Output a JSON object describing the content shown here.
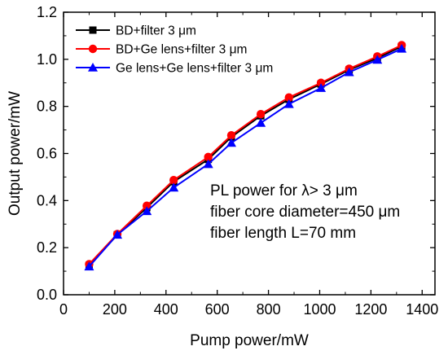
{
  "chart_data": {
    "type": "line",
    "title": "",
    "xlabel": "Pump power/mW",
    "ylabel": "Output power/mW",
    "xlim": [
      0,
      1450
    ],
    "ylim": [
      0,
      1.2
    ],
    "xticks": [
      0,
      200,
      400,
      600,
      800,
      1000,
      1200,
      1400
    ],
    "yticks": [
      0.0,
      0.2,
      0.4,
      0.6,
      0.8,
      1.0,
      1.2
    ],
    "xtick_labels": [
      "0",
      "200",
      "400",
      "600",
      "800",
      "1000",
      "1200",
      "1400"
    ],
    "ytick_labels": [
      "0.0",
      "0.2",
      "0.4",
      "0.6",
      "0.8",
      "1.0",
      "1.2"
    ],
    "grid": false,
    "legend_position": "top-left",
    "x": [
      100,
      210,
      325,
      430,
      565,
      655,
      770,
      880,
      1005,
      1115,
      1225,
      1320
    ],
    "series": [
      {
        "name": "BD+filter 3 μm",
        "color": "#000000",
        "marker": "square",
        "values": [
          0.125,
          0.255,
          0.37,
          0.48,
          0.575,
          0.67,
          0.76,
          0.83,
          0.895,
          0.955,
          1.005,
          1.055
        ]
      },
      {
        "name": "BD+Ge lens+filter 3 μm",
        "color": "#ff0000",
        "marker": "circle",
        "values": [
          0.13,
          0.258,
          0.378,
          0.487,
          0.585,
          0.677,
          0.767,
          0.838,
          0.9,
          0.96,
          1.012,
          1.06
        ]
      },
      {
        "name": "Ge lens+Ge lens+filter 3 μm",
        "color": "#0000ff",
        "marker": "triangle",
        "values": [
          0.12,
          0.255,
          0.355,
          0.455,
          0.555,
          0.645,
          0.73,
          0.81,
          0.878,
          0.945,
          0.998,
          1.045
        ]
      }
    ],
    "annotations": [
      "PL power for λ> 3 μm",
      "fiber core diameter=450 μm",
      "fiber length L=70 mm"
    ]
  }
}
